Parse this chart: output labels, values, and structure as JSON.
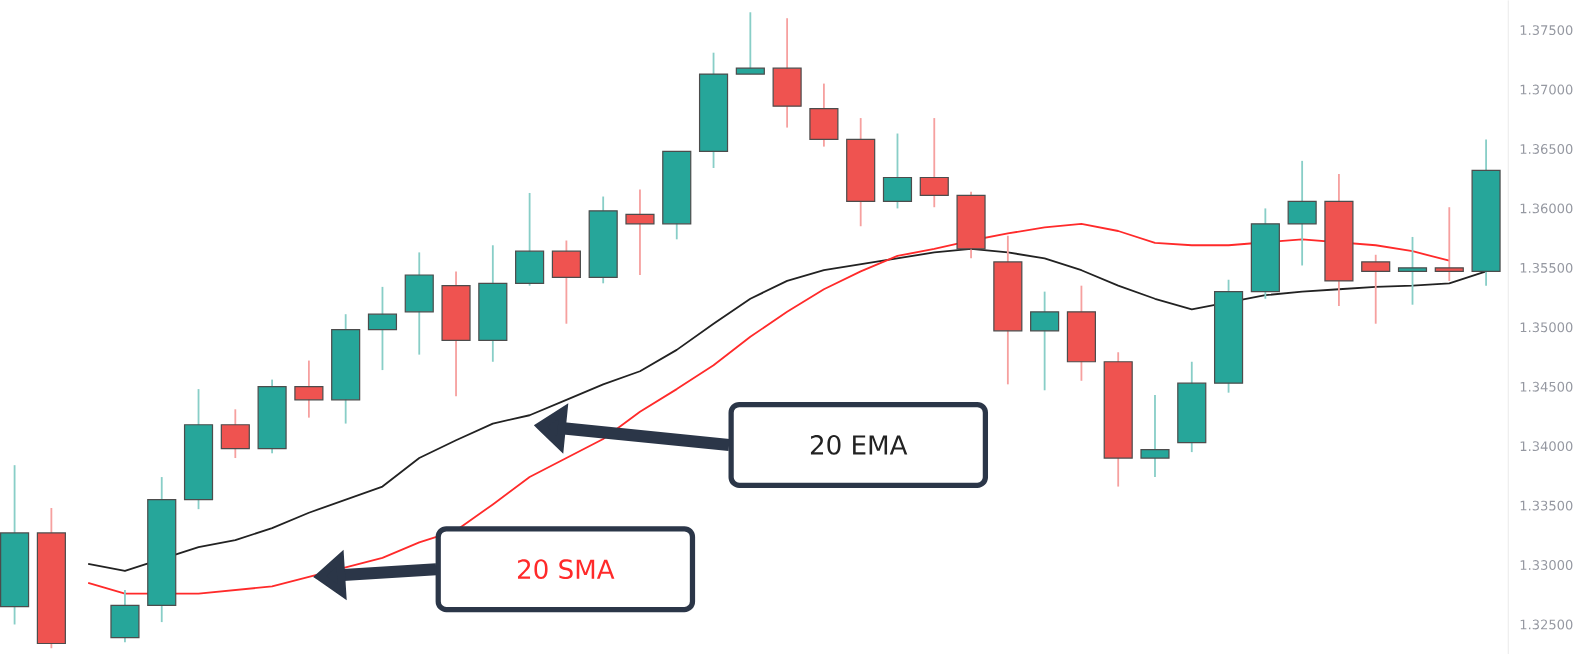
{
  "chart_data": {
    "type": "candlestick",
    "categories": [
      null,
      null,
      null,
      null,
      null,
      null,
      null,
      null,
      null,
      null,
      null,
      null,
      null,
      null,
      null,
      null,
      null,
      null,
      null,
      null,
      null,
      null,
      null,
      null,
      null,
      null,
      null,
      null,
      null,
      null,
      null,
      null,
      null,
      null,
      null,
      null,
      null,
      null,
      null,
      null,
      null
    ],
    "ohlc": [
      [
        1.3265,
        1.3384,
        1.325,
        1.3327
      ],
      [
        1.3327,
        1.3348,
        1.323,
        1.3234
      ],
      null,
      [
        1.3239,
        1.3279,
        1.3235,
        1.3266
      ],
      [
        1.3266,
        1.3374,
        1.3252,
        1.3355
      ],
      [
        1.3355,
        1.3448,
        1.3347,
        1.3418
      ],
      [
        1.3418,
        1.3431,
        1.339,
        1.3398
      ],
      [
        1.3398,
        1.3456,
        1.3394,
        1.345
      ],
      [
        1.345,
        1.3472,
        1.3424,
        1.3439
      ],
      [
        1.3439,
        1.3511,
        1.3419,
        1.3498
      ],
      [
        1.3498,
        1.3534,
        1.3464,
        1.3511
      ],
      [
        1.3513,
        1.3563,
        1.3477,
        1.3544
      ],
      [
        1.3535,
        1.3547,
        1.3442,
        1.3489
      ],
      [
        1.3489,
        1.3569,
        1.3471,
        1.3537
      ],
      [
        1.3537,
        1.3613,
        1.3535,
        1.3564
      ],
      [
        1.3564,
        1.3573,
        1.3503,
        1.3542
      ],
      [
        1.3542,
        1.361,
        1.3537,
        1.3598
      ],
      [
        1.3595,
        1.3616,
        1.3544,
        1.3587
      ],
      [
        1.3587,
        1.3648,
        1.3574,
        1.3648
      ],
      [
        1.3648,
        1.3731,
        1.3634,
        1.3713
      ],
      [
        1.3713,
        1.3765,
        1.3713,
        1.3718
      ],
      [
        1.3718,
        1.376,
        1.3668,
        1.3686
      ],
      [
        1.3684,
        1.3705,
        1.3652,
        1.3658
      ],
      [
        1.3658,
        1.3676,
        1.3585,
        1.3606
      ],
      [
        1.3606,
        1.3663,
        1.36,
        1.3626
      ],
      [
        1.3626,
        1.3676,
        1.3601,
        1.3611
      ],
      [
        1.3611,
        1.3614,
        1.3558,
        1.3566
      ],
      [
        1.3555,
        1.3577,
        1.3452,
        1.3497
      ],
      [
        1.3497,
        1.353,
        1.3447,
        1.3513
      ],
      [
        1.3513,
        1.3535,
        1.3455,
        1.3471
      ],
      [
        1.3471,
        1.3479,
        1.3366,
        1.339
      ],
      [
        1.339,
        1.3443,
        1.3374,
        1.3397
      ],
      [
        1.3403,
        1.3471,
        1.3395,
        1.3453
      ],
      [
        1.3453,
        1.354,
        1.3445,
        1.353
      ],
      [
        1.353,
        1.36,
        1.3524,
        1.3587
      ],
      [
        1.3587,
        1.364,
        1.3552,
        1.3606
      ],
      [
        1.3606,
        1.3629,
        1.3518,
        1.3539
      ],
      [
        1.3555,
        1.3561,
        1.3503,
        1.3547
      ],
      [
        1.3547,
        1.3576,
        1.3519,
        1.355
      ],
      [
        1.355,
        1.3601,
        1.3539,
        1.3547
      ],
      [
        1.3547,
        1.3658,
        1.3535,
        1.3632
      ]
    ],
    "series": [
      {
        "name": "20 EMA",
        "type": "line",
        "color": "#222222",
        "values": [
          null,
          null,
          1.3301,
          1.3295,
          null,
          1.3315,
          1.3321,
          1.3331,
          1.3344,
          1.3355,
          1.3366,
          1.339,
          1.3405,
          1.3419,
          1.3426,
          1.3439,
          1.3452,
          1.3463,
          1.3481,
          1.3503,
          1.3524,
          1.3539,
          1.3548,
          1.3553,
          1.3558,
          1.3563,
          1.3566,
          1.3563,
          1.3558,
          1.3548,
          1.3535,
          1.3524,
          1.3515,
          null,
          1.3527,
          1.353,
          1.3532,
          1.3534,
          1.3535,
          1.3537,
          1.3547
        ]
      },
      {
        "name": "20 SMA",
        "type": "line",
        "color": "#ff2a2a",
        "values": [
          null,
          null,
          1.3285,
          1.3276,
          null,
          1.3276,
          1.3279,
          1.3282,
          1.329,
          1.3298,
          1.3306,
          1.3319,
          1.3329,
          1.3351,
          1.3374,
          1.339,
          1.3406,
          1.3429,
          1.3448,
          1.3468,
          1.3492,
          1.3513,
          1.3532,
          1.3547,
          1.356,
          1.3566,
          1.3573,
          1.3579,
          1.3584,
          1.3587,
          1.3581,
          1.3571,
          1.3569,
          1.3569,
          null,
          1.3574,
          null,
          1.3569,
          1.3564,
          1.3556,
          null
        ]
      }
    ],
    "ylim": [
      1.3225,
      1.3775
    ],
    "yticks": [
      {
        "value": 1.325,
        "label": "1.32500"
      },
      {
        "value": 1.33,
        "label": "1.33000"
      },
      {
        "value": 1.335,
        "label": "1.33500"
      },
      {
        "value": 1.34,
        "label": "1.34000"
      },
      {
        "value": 1.345,
        "label": "1.34500"
      },
      {
        "value": 1.35,
        "label": "1.35000"
      },
      {
        "value": 1.355,
        "label": "1.35500"
      },
      {
        "value": 1.36,
        "label": "1.36000"
      },
      {
        "value": 1.365,
        "label": "1.36500"
      },
      {
        "value": 1.37,
        "label": "1.37000"
      },
      {
        "value": 1.375,
        "label": "1.37500"
      }
    ],
    "tick_labels": "y",
    "marker": "none"
  }
}
